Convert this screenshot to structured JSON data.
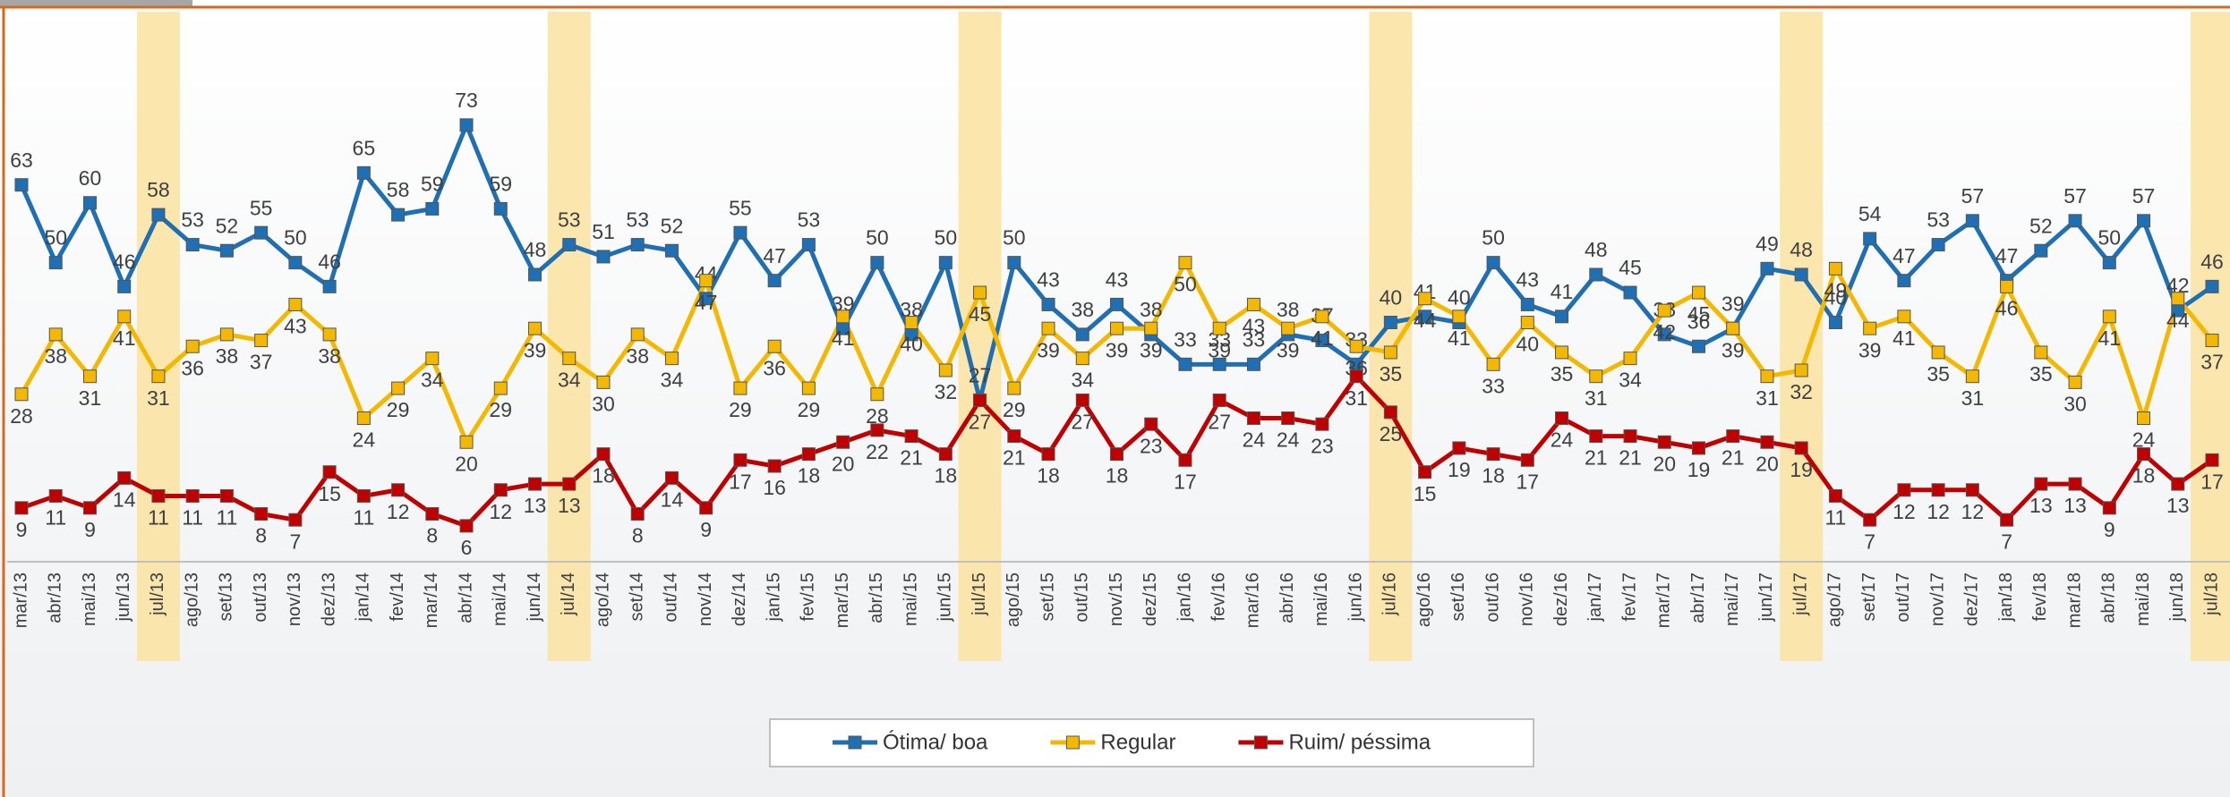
{
  "chart_data": {
    "type": "line",
    "categories": [
      "mar/13",
      "abr/13",
      "mai/13",
      "jun/13",
      "jul/13",
      "ago/13",
      "set/13",
      "out/13",
      "nov/13",
      "dez/13",
      "jan/14",
      "fev/14",
      "mar/14",
      "abr/14",
      "mai/14",
      "jun/14",
      "jul/14",
      "ago/14",
      "set/14",
      "out/14",
      "nov/14",
      "dez/14",
      "jan/15",
      "fev/15",
      "mar/15",
      "abr/15",
      "mai/15",
      "jun/15",
      "jul/15",
      "ago/15",
      "set/15",
      "out/15",
      "nov/15",
      "dez/15",
      "jan/16",
      "fev/16",
      "mar/16",
      "abr/16",
      "mai/16",
      "jun/16",
      "jul/16",
      "ago/16",
      "set/16",
      "out/16",
      "nov/16",
      "dez/16",
      "jan/17",
      "fev/17",
      "mar/17",
      "abr/17",
      "mai/17",
      "jun/17",
      "jul/17",
      "ago/17",
      "set/17",
      "out/17",
      "nov/17",
      "dez/17",
      "jan/18",
      "fev/18",
      "mar/18",
      "abr/18",
      "mai/18",
      "jun/18",
      "jul/18"
    ],
    "series": [
      {
        "name": "Ótima/ boa",
        "color": "#1f6fb5",
        "values": [
          63,
          50,
          60,
          46,
          58,
          53,
          52,
          55,
          50,
          46,
          65,
          58,
          59,
          73,
          59,
          48,
          53,
          51,
          53,
          52,
          44,
          55,
          47,
          53,
          39,
          50,
          38,
          50,
          27,
          50,
          43,
          38,
          43,
          38,
          33,
          33,
          33,
          38,
          37,
          33,
          40,
          41,
          40,
          50,
          43,
          41,
          48,
          45,
          38,
          36,
          39,
          49,
          48,
          40,
          54,
          47,
          53,
          57,
          47,
          52,
          57,
          50,
          57,
          42,
          46
        ]
      },
      {
        "name": "Regular",
        "color": "#f5b800",
        "values": [
          28,
          38,
          31,
          41,
          31,
          36,
          38,
          37,
          43,
          38,
          24,
          29,
          34,
          20,
          29,
          39,
          34,
          30,
          38,
          34,
          47,
          29,
          36,
          29,
          41,
          28,
          40,
          32,
          45,
          29,
          39,
          34,
          39,
          39,
          50,
          39,
          43,
          39,
          41,
          36,
          35,
          44,
          41,
          33,
          40,
          35,
          31,
          34,
          42,
          45,
          39,
          31,
          32,
          49,
          39,
          41,
          35,
          31,
          46,
          35,
          30,
          41,
          24,
          44,
          37
        ]
      },
      {
        "name": "Ruim/ péssima",
        "color": "#c00000",
        "values": [
          9,
          11,
          9,
          14,
          11,
          11,
          11,
          8,
          7,
          15,
          11,
          12,
          8,
          6,
          12,
          13,
          13,
          18,
          8,
          14,
          9,
          17,
          16,
          18,
          20,
          22,
          21,
          18,
          27,
          21,
          18,
          27,
          18,
          23,
          17,
          27,
          24,
          24,
          23,
          31,
          25,
          15,
          19,
          18,
          17,
          24,
          21,
          21,
          20,
          19,
          21,
          20,
          19,
          11,
          7,
          12,
          12,
          12,
          7,
          13,
          13,
          9,
          18,
          13,
          17
        ]
      }
    ],
    "highlighted_categories": [
      "jul/13",
      "jul/14",
      "jul/15",
      "jul/16",
      "jul/17",
      "jul/18"
    ],
    "highlight_color": "#fbe3a4",
    "ylim": [
      0,
      80
    ],
    "legend": "bottom"
  }
}
